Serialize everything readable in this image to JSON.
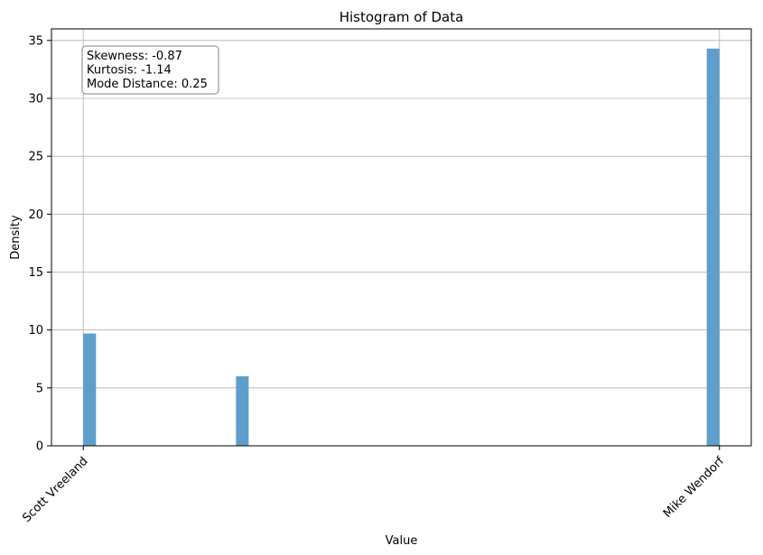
{
  "chart_data": {
    "type": "bar",
    "title": "Histogram of Data",
    "xlabel": "Value",
    "ylabel": "Density",
    "ylim": [
      0,
      36
    ],
    "yticks": [
      0,
      5,
      10,
      15,
      20,
      25,
      30,
      35
    ],
    "xticks": [
      {
        "label": "Scott Vreeland",
        "value": 0
      },
      {
        "label": "Mike Wendorf",
        "value": 1
      }
    ],
    "xlim": [
      -0.05,
      1.05
    ],
    "bin_width": 0.02,
    "bars": [
      {
        "x": 0.0,
        "value": 9.7
      },
      {
        "x": 0.24,
        "value": 6.0
      },
      {
        "x": 0.98,
        "value": 34.3
      }
    ],
    "grid": true,
    "color": "#5f9ecb",
    "annotation": {
      "lines": [
        "Skewness: -0.87",
        "Kurtosis: -1.14",
        "Mode Distance: 0.25"
      ],
      "placement": "top-left"
    }
  }
}
